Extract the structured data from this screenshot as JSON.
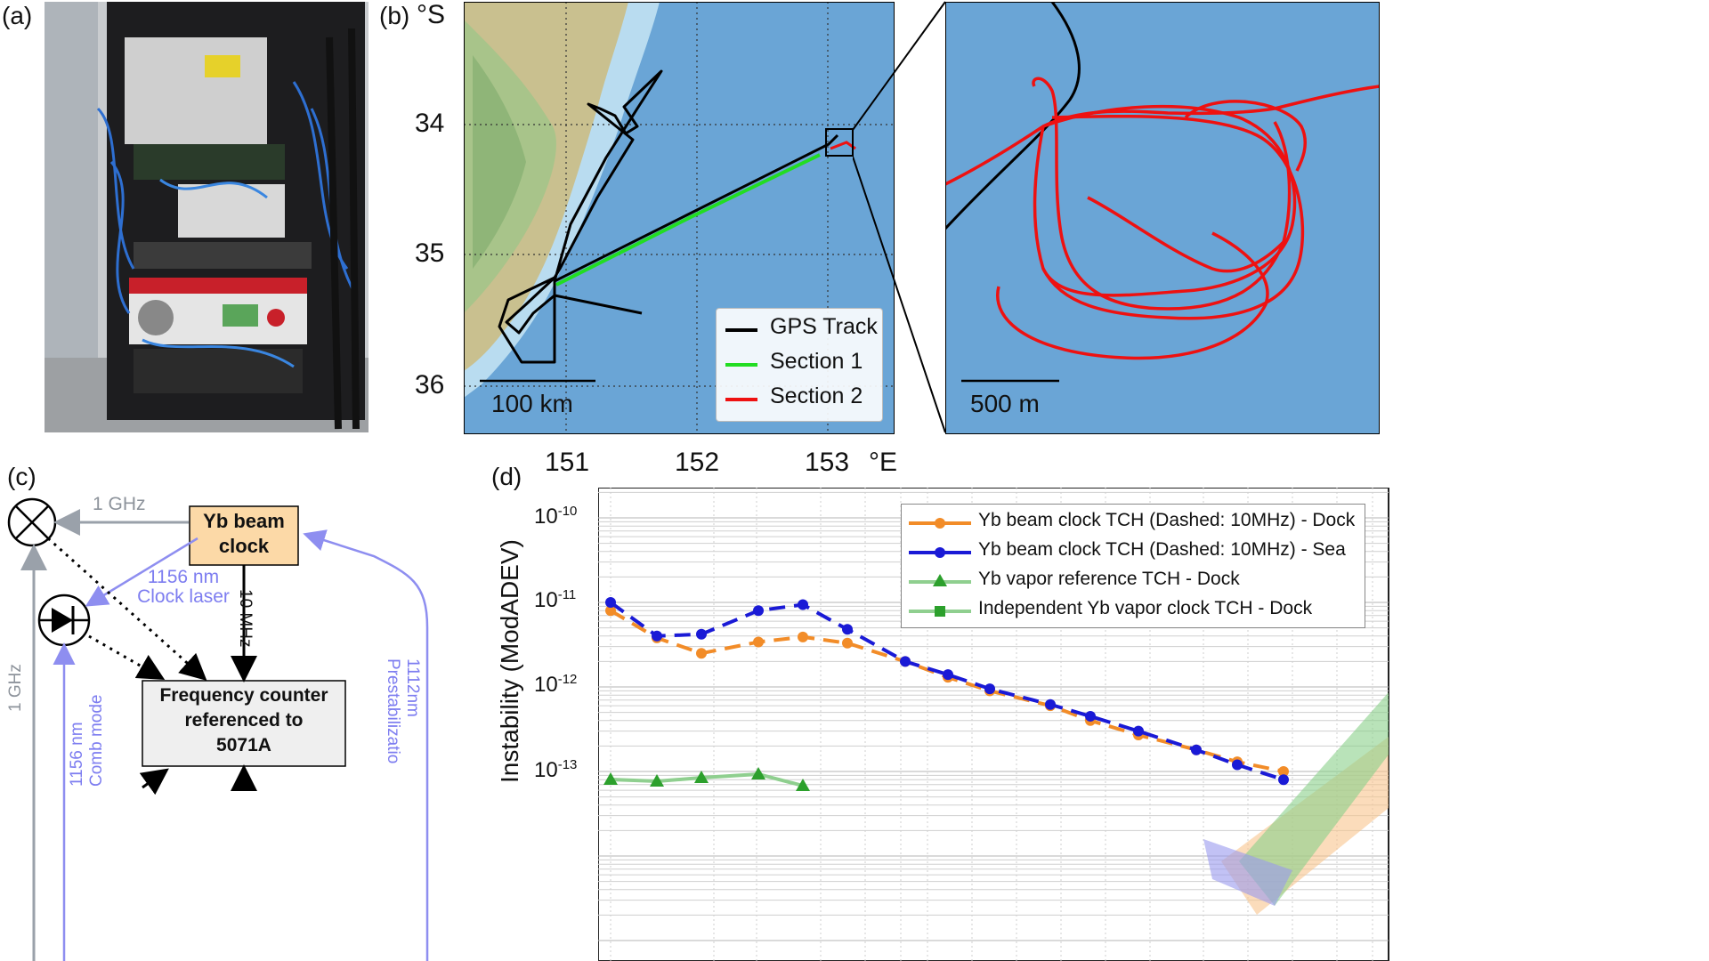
{
  "panels": {
    "a": "(a)",
    "b": "(b)",
    "c": "(c)",
    "d": "(d)"
  },
  "map": {
    "lat_unit": "°S",
    "lon_unit": "°E",
    "lat_ticks": [
      "34",
      "35",
      "36"
    ],
    "lon_ticks": [
      "151",
      "152",
      "153"
    ],
    "scalebar_main": "100 km",
    "scalebar_inset": "500 m",
    "legend": [
      "GPS Track",
      "Section 1",
      "Section 2"
    ],
    "colors": {
      "gps": "#000000",
      "section1": "#22dd22",
      "section2": "#ee1111",
      "sea": "#6aa5d6"
    }
  },
  "diagram": {
    "yb_clock": "Yb beam\nclock",
    "counter": "Frequency counter\nreferenced to\n5071A",
    "label_1ghz_top": "1 GHz",
    "label_1ghz_left": "1 GHz",
    "label_clock_laser": "1156 nm\nClock laser",
    "label_10mhz": "10 MHz",
    "label_comb": "1156 nm\nComb mode",
    "label_prestab": "1112nm\nPrestabilizatio"
  },
  "chart_data": {
    "type": "line",
    "ylabel": "Instability (ModADEV)",
    "ytick_labels": [
      "10",
      "10",
      "10",
      "10"
    ],
    "ytick_exponents": [
      "-10",
      "-11",
      "-12",
      "-13"
    ],
    "log_y": true,
    "grid": true,
    "legend_placement": "top-right",
    "series": [
      {
        "name": "Yb beam clock TCH (Dashed: 10MHz) - Dock",
        "color": "#f28c28",
        "dashed_points": [
          [
            1,
            8e-12
          ],
          [
            2,
            3.8e-12
          ],
          [
            3,
            2.5e-12
          ],
          [
            4,
            3.4e-12
          ],
          [
            5,
            3.9e-12
          ],
          [
            6,
            3.3e-12
          ],
          [
            7,
            2e-12
          ],
          [
            8,
            1.3e-12
          ],
          [
            9,
            9e-13
          ],
          [
            10,
            6e-13
          ],
          [
            11,
            4e-13
          ],
          [
            12,
            2.7e-13
          ],
          [
            13,
            1.8e-13
          ],
          [
            14,
            1.3e-13
          ],
          [
            15,
            1e-13
          ]
        ]
      },
      {
        "name": "Yb beam clock TCH (Dashed: 10MHz) - Sea",
        "color": "#1a1ad6",
        "dashed_points": [
          [
            1,
            1e-11
          ],
          [
            2,
            4e-12
          ],
          [
            3,
            4.2e-12
          ],
          [
            4,
            8e-12
          ],
          [
            5,
            9.4e-12
          ],
          [
            6,
            4.8e-12
          ],
          [
            7,
            2e-12
          ],
          [
            8,
            1.4e-12
          ],
          [
            9,
            9.5e-13
          ],
          [
            10,
            6.2e-13
          ],
          [
            11,
            4.5e-13
          ],
          [
            12,
            3e-13
          ],
          [
            13,
            1.8e-13
          ],
          [
            14,
            1.2e-13
          ],
          [
            15,
            8e-14
          ]
        ]
      },
      {
        "name": "Yb vapor reference TCH - Dock",
        "color": "#2ca02c",
        "marker": "triangle"
      },
      {
        "name": "Independent Yb vapor clock TCH - Dock",
        "color": "#2ca02c",
        "marker": "square"
      }
    ]
  }
}
